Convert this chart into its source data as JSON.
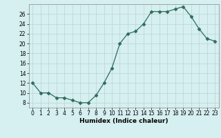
{
  "x": [
    0,
    1,
    2,
    3,
    4,
    5,
    6,
    7,
    8,
    9,
    10,
    11,
    12,
    13,
    14,
    15,
    16,
    17,
    18,
    19,
    20,
    21,
    22,
    23
  ],
  "y": [
    12,
    10,
    10,
    9,
    9,
    8.5,
    8,
    8,
    9.5,
    12,
    15,
    20,
    22,
    22.5,
    24,
    26.5,
    26.5,
    26.5,
    27,
    27.5,
    25.5,
    23,
    21,
    20.5
  ],
  "line_color": "#2e6b5e",
  "marker": "D",
  "marker_size": 2.5,
  "bg_color": "#d6eff0",
  "grid_color": "#b8d4d4",
  "xlabel": "Humidex (Indice chaleur)",
  "ylim": [
    7,
    28
  ],
  "xlim": [
    -0.5,
    23.5
  ],
  "yticks": [
    8,
    10,
    12,
    14,
    16,
    18,
    20,
    22,
    24,
    26
  ],
  "xtick_labels": [
    "0",
    "1",
    "2",
    "3",
    "4",
    "5",
    "6",
    "7",
    "8",
    "9",
    "10",
    "11",
    "12",
    "13",
    "14",
    "15",
    "16",
    "17",
    "18",
    "19",
    "20",
    "21",
    "22",
    "23"
  ],
  "xlabel_fontsize": 6.5,
  "tick_fontsize": 5.5,
  "linewidth": 0.9
}
